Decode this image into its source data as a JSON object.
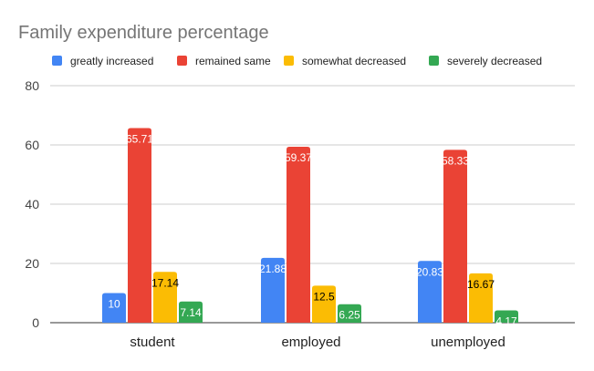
{
  "chart_data": {
    "type": "bar",
    "title": "Family expenditure percentage",
    "xlabel": "",
    "ylabel": "",
    "categories": [
      "student",
      "employed",
      "unemployed"
    ],
    "series": [
      {
        "name": "greatly increased",
        "color": "#4285F4",
        "values": [
          10,
          21.88,
          20.83
        ]
      },
      {
        "name": "remained same",
        "color": "#EA4335",
        "values": [
          65.71,
          59.37,
          58.33
        ]
      },
      {
        "name": "somewhat decreased",
        "color": "#FBBC04",
        "values": [
          17.14,
          12.5,
          16.67
        ]
      },
      {
        "name": "severely decreased",
        "color": "#34A853",
        "values": [
          7.14,
          6.25,
          4.17
        ]
      }
    ],
    "ylim": [
      0,
      80
    ],
    "yticks": [
      0,
      20,
      40,
      60,
      80
    ],
    "grid": true,
    "legend_position": "top"
  }
}
